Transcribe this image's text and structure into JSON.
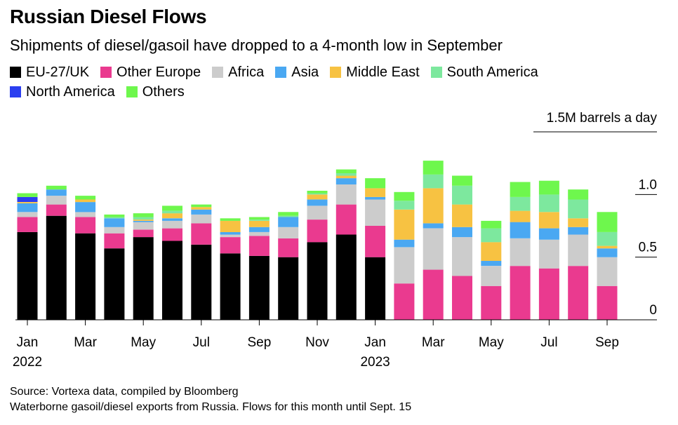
{
  "header": {
    "title": "Russian Diesel Flows",
    "subtitle": "Shipments of diesel/gasoil have dropped to a 4-month low in September"
  },
  "footer": {
    "source": "Source: Vortexa data, compiled by Bloomberg",
    "note": "Waterborne gasoil/diesel exports from Russia. Flows for this month until Sept. 15"
  },
  "chart_data": {
    "type": "bar",
    "stacked": true,
    "title": "Russian Diesel Flows",
    "subtitle": "Shipments of diesel/gasoil have dropped to a 4-month low in September",
    "unit_label": "1.5M barrels a day",
    "ylim": [
      0,
      1.5
    ],
    "yticks": [
      {
        "value": 0,
        "label": "0"
      },
      {
        "value": 0.5,
        "label": "0.5"
      },
      {
        "value": 1.0,
        "label": "1.0"
      }
    ],
    "xtick_labels": [
      {
        "index": 0,
        "line1": "Jan",
        "line2": "2022"
      },
      {
        "index": 2,
        "line1": "Mar",
        "line2": ""
      },
      {
        "index": 4,
        "line1": "May",
        "line2": ""
      },
      {
        "index": 6,
        "line1": "Jul",
        "line2": ""
      },
      {
        "index": 8,
        "line1": "Sep",
        "line2": ""
      },
      {
        "index": 10,
        "line1": "Nov",
        "line2": ""
      },
      {
        "index": 12,
        "line1": "Jan",
        "line2": "2023"
      },
      {
        "index": 14,
        "line1": "Mar",
        "line2": ""
      },
      {
        "index": 16,
        "line1": "May",
        "line2": ""
      },
      {
        "index": 18,
        "line1": "Jul",
        "line2": ""
      },
      {
        "index": 20,
        "line1": "Sep",
        "line2": ""
      }
    ],
    "categories": [
      "2022-01",
      "2022-02",
      "2022-03",
      "2022-04",
      "2022-05",
      "2022-06",
      "2022-07",
      "2022-08",
      "2022-09",
      "2022-10",
      "2022-11",
      "2022-12",
      "2023-01",
      "2023-02",
      "2023-03",
      "2023-04",
      "2023-05",
      "2023-06",
      "2023-07",
      "2023-08",
      "2023-09"
    ],
    "series": [
      {
        "name": "EU-27/UK",
        "color": "#000000",
        "values": [
          0.7,
          0.83,
          0.69,
          0.57,
          0.66,
          0.63,
          0.6,
          0.53,
          0.51,
          0.5,
          0.62,
          0.68,
          0.5,
          0,
          0,
          0,
          0,
          0,
          0,
          0,
          0
        ]
      },
      {
        "name": "Other Europe",
        "color": "#ea3a8f",
        "values": [
          0.12,
          0.09,
          0.13,
          0.12,
          0.06,
          0.1,
          0.17,
          0.13,
          0.16,
          0.15,
          0.18,
          0.24,
          0.25,
          0.29,
          0.4,
          0.35,
          0.27,
          0.43,
          0.41,
          0.43,
          0.27
        ]
      },
      {
        "name": "Africa",
        "color": "#cccccc",
        "values": [
          0.04,
          0.07,
          0.04,
          0.05,
          0.06,
          0.06,
          0.07,
          0.02,
          0.03,
          0.09,
          0.11,
          0.16,
          0.21,
          0.29,
          0.33,
          0.31,
          0.16,
          0.22,
          0.23,
          0.25,
          0.23
        ]
      },
      {
        "name": "Asia",
        "color": "#4aa8f2",
        "values": [
          0.07,
          0.05,
          0.08,
          0.07,
          0.01,
          0.02,
          0.04,
          0.02,
          0.04,
          0.08,
          0.05,
          0.05,
          0.02,
          0.06,
          0.04,
          0.08,
          0.04,
          0.13,
          0.09,
          0.06,
          0.07
        ]
      },
      {
        "name": "Middle East",
        "color": "#f7c242",
        "values": [
          0.01,
          0,
          0.02,
          0,
          0.01,
          0.04,
          0.02,
          0.09,
          0.05,
          0,
          0.04,
          0.02,
          0.07,
          0.24,
          0.28,
          0.18,
          0.15,
          0.09,
          0.13,
          0.07,
          0.02
        ]
      },
      {
        "name": "South America",
        "color": "#7de89e",
        "values": [
          0,
          0,
          0,
          0.01,
          0.02,
          0.02,
          0,
          0,
          0.01,
          0.01,
          0.01,
          0.02,
          0,
          0.07,
          0.11,
          0.15,
          0.11,
          0.11,
          0.14,
          0.15,
          0.11
        ]
      },
      {
        "name": "North America",
        "color": "#2b3ff0",
        "values": [
          0.04,
          0,
          0,
          0,
          0,
          0,
          0,
          0,
          0,
          0,
          0,
          0,
          0,
          0,
          0,
          0,
          0,
          0,
          0,
          0,
          0
        ]
      },
      {
        "name": "Others",
        "color": "#6ef74d",
        "values": [
          0.03,
          0.03,
          0.03,
          0.02,
          0.03,
          0.04,
          0.02,
          0.02,
          0.02,
          0.03,
          0.02,
          0.03,
          0.08,
          0.07,
          0.11,
          0.08,
          0.06,
          0.12,
          0.11,
          0.08,
          0.16
        ]
      }
    ]
  }
}
